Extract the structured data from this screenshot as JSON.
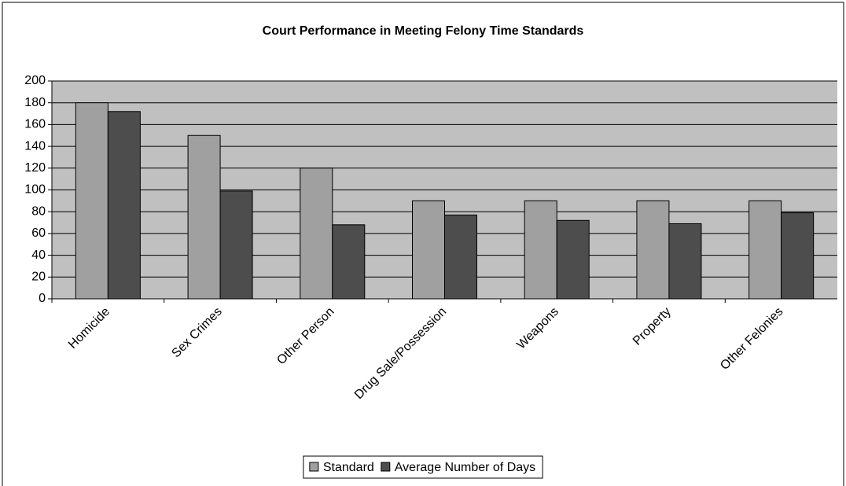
{
  "chart_data": {
    "type": "bar",
    "title": "Court Performance in Meeting Felony Time Standards",
    "categories": [
      "Homicide",
      "Sex Crimes",
      "Other Person",
      "Drug Sale/Possession",
      "Weapons",
      "Property",
      "Other Felonies"
    ],
    "series": [
      {
        "name": "Standard",
        "color": "#a0a0a0",
        "values": [
          180,
          150,
          120,
          90,
          90,
          90,
          90
        ]
      },
      {
        "name": "Average Number of Days",
        "color": "#4d4d4d",
        "values": [
          172,
          99,
          68,
          77,
          72,
          69,
          79
        ]
      }
    ],
    "ylim": [
      0,
      200
    ],
    "yticks": [
      0,
      20,
      40,
      60,
      80,
      100,
      120,
      140,
      160,
      180,
      200
    ],
    "grid": true,
    "legend": "bottom"
  }
}
